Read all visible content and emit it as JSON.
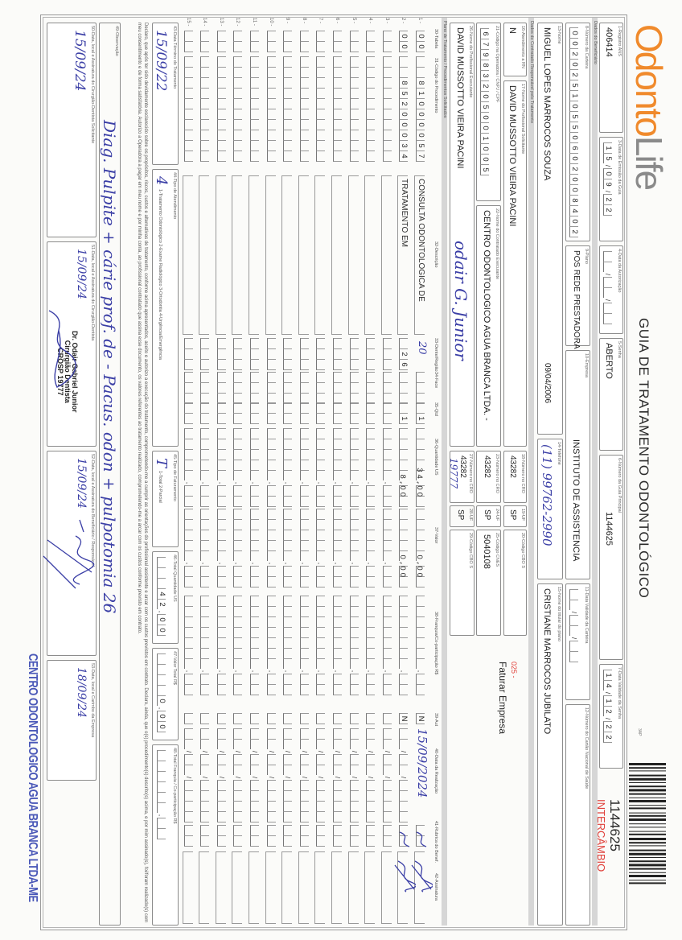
{
  "header": {
    "brand_a": "Odonto",
    "brand_b": "Life",
    "title": "GUIA DE TRATAMENTO ODONTOLÓGICO",
    "form_code": "3AP",
    "barcode_number": "1144625",
    "barcode_tag": "INTERCÂMBIO",
    "colors": {
      "brand": "#f08a2c",
      "tag": "#e0403a",
      "handwriting": "#3b3fa6"
    }
  },
  "guide": {
    "registro_ans": {
      "label": "1-Registro ANS",
      "value": "406414"
    },
    "data_emissao": {
      "label": "3-Data de Emissão da Guia",
      "value": "15/09/22"
    },
    "data_autorizacao": {
      "label": "4-Data da Autorização",
      "value": ""
    },
    "senha": {
      "label": "5-Senha",
      "value": "ABERTO"
    },
    "guia_principal": {
      "label": "6-Número da Guia Principal",
      "value": "1144625"
    },
    "validade_senha": {
      "label": "7-Data Validade da Senha",
      "value": "14/12/22"
    }
  },
  "beneficiario": {
    "section": "Dados do Beneficiário",
    "carteira": {
      "label": "8-Número da Carteira",
      "value": "00202510550602008402"
    },
    "plano": {
      "label": "9-Plano",
      "value": "POS REDE PRESTADORA"
    },
    "empresa": {
      "label": "10-Empresa",
      "value": "INSTITUTO DE ASSISTENCIA"
    },
    "validade_carteira": {
      "label": "11-Data Validade da Carteira",
      "value": ""
    },
    "cns": {
      "label": "12-Número do Cartão Nacional de Saúde",
      "value": ""
    },
    "nome": {
      "label": "13-Nome",
      "value": "MIGUEL LOPES MARROCOS SOUZA"
    },
    "nascimento": "09/04/2006",
    "telefone": {
      "label": "14-Telefone",
      "value": "(11) 99762-2990"
    },
    "titular": {
      "label": "15-Nome do titular do plano",
      "value": "CRISTIANE MARROCOS JUBILATO"
    }
  },
  "contratado": {
    "section": "Dados do Contratado Responsável pelo Tratamento",
    "rn": {
      "label": "16-Atendimento a RN",
      "value": "N"
    },
    "solicitante": {
      "label": "17-Nome do Profissional Solicitante",
      "value": "DAVID MUSSOTTO VIEIRA PACINI"
    },
    "cro_sol": {
      "label": "18-Número no CRO",
      "value": "43282"
    },
    "uf_sol": {
      "label": "19-UF",
      "value": "SP"
    },
    "cbo_sol": {
      "label": "20-Código CBO S",
      "value": ""
    },
    "faturamento_code": "025 -",
    "faturamento_text": "Faturar Empresa",
    "codigo_operadora": {
      "label": "21-Código na Operadora / CNPJ / CPF",
      "value": "67983205001005"
    },
    "executante_contratado": {
      "label": "22-Nome do Contratado Executante",
      "value": "CENTRO ODONTOLOGICO AGUA BRANCA LTDA. -"
    },
    "cro_exec": {
      "label": "23-Número no CRO",
      "value": "43282"
    },
    "uf_exec": {
      "label": "24-UF",
      "value": "SP"
    },
    "cnes": {
      "label": "25-Código CNES",
      "value": "5040108"
    },
    "prof_executante": {
      "label": "26-Nome do Profissional Executante",
      "value": "DAVID MUSSOTTO VIEIRA PACINI"
    },
    "prof_signature": "odair G. Junior",
    "cro_prof": {
      "label": "27-Número no CRO",
      "value": "43282"
    },
    "cro_handwritten": "19777",
    "uf_prof": {
      "label": "28-UF",
      "value": "SP"
    },
    "cbo_prof": {
      "label": "29-Código CBO S",
      "value": ""
    }
  },
  "procedures": {
    "section": "Plano de Tratamento / Procedimentos Solicitados",
    "headers": {
      "tabela": "30-Tabela",
      "codigo": "31-Código do Procedimento",
      "descricao": "32-Descrição",
      "dente": "33-Dente/Região",
      "face": "34-Face",
      "qtd": "35-Qtd",
      "us": "36-Quantidade US",
      "valor": "37-Valor",
      "franquia": "38-Franquia/Co-participação R$",
      "aut": "39-Aut",
      "data": "40-Data da Realização",
      "rubrica": "41-Rubrica do Benef.",
      "assinatura": "42-Assinatura"
    },
    "rows": [
      {
        "n": "1 -",
        "tabela": "00",
        "codigo": "81000057",
        "descricao": "CONSULTA ODONTOLOGICA DE",
        "dente": "20",
        "face": "",
        "qtd": "1",
        "us": "34,00",
        "valor": "0,00",
        "franquia": "",
        "aut": "N",
        "data": "15/09/2024",
        "signed": true
      },
      {
        "n": "2 -",
        "tabela": "00",
        "codigo": "85200034",
        "descricao": "TRATAMENTO EM",
        "dente": "26",
        "face": "",
        "qtd": "1",
        "us": "8,00",
        "valor": "0,00",
        "franquia": "",
        "aut": "N",
        "data": "",
        "signed": true
      },
      {
        "n": "3 -"
      },
      {
        "n": "4 -"
      },
      {
        "n": "5 -"
      },
      {
        "n": "6 -"
      },
      {
        "n": "7 -"
      },
      {
        "n": "8 -"
      },
      {
        "n": "9 -"
      },
      {
        "n": "10 -"
      },
      {
        "n": "11 -"
      },
      {
        "n": "12 -"
      },
      {
        "n": "13 -"
      },
      {
        "n": "14 -"
      },
      {
        "n": "15 -"
      }
    ]
  },
  "totals": {
    "data_termino": {
      "label": "43-Data Término do Tratamento",
      "value": "15/09/22"
    },
    "tipo_atendimento": {
      "label": "44-Tipo de Atendimento",
      "value": "4",
      "options": "1-Tratamento Odontológico  2-Exame Radiológico  3-Ortodontia  4-Urgência/Emergência"
    },
    "tipo_faturamento": {
      "label": "45-Tipo de Faturamento",
      "value": "T",
      "options": "1-Total  2-Parcial"
    },
    "total_us": {
      "label": "46-Total Quantidade US",
      "value": "42,00"
    },
    "valor_total": {
      "label": "47-Valor Total R$",
      "value": "0,00"
    },
    "total_franquia": {
      "label": "48-Total Franquia / Co-participação R$",
      "value": ""
    }
  },
  "declaration": "Declaro, que após ter sido devidamente esclarecido sobre os propósitos, riscos, custos e alternativas de tratamento, conforme acima apresentados, aceito e autorizo a execução do tratamento, comprometendo-me a cumprir as orientações do profissional assistente e arcar com os custos previstos em contrato. Declaro, ainda, que o(s) procedimento(s) descrito(s) acima, e por mim assinado(s), foi/foram realizado(s) com meu consentimento e de forma satisfatória. Autorizo a Operadora a pagar em meu nome e por minha conta, ao profissional contratado que assina esse documento, os valores referentes ao tratamento realizado, comprometendo-me a arcar com os custos conforme previsto em contrato.",
  "observacao": {
    "label": "49-Observação",
    "value": "Diag. Pulpite + cárie prof. de - Pacus. odon + pulpotomia 26"
  },
  "signatures": {
    "s50": {
      "label": "50-Data, local e Assinatura do Cirurgião-Dentista Solicitante",
      "date": "15/09/24"
    },
    "s51": {
      "label": "51-Data, local e Assinatura do Cirurgião-Dentista",
      "date": "15/09/24",
      "stamp": [
        "Dr. Odair Gabriel Junior",
        "Cirurgião Dentista",
        "CROSP 19777"
      ]
    },
    "s52": {
      "label": "52-Data, local e Assinatura do Beneficiário / Responsável",
      "date": "15/09/24"
    },
    "s53": {
      "label": "53-Data, local e Carimbo da Empresa",
      "date": "18/09/24"
    },
    "company_stamp": "CENTRO ODONTOLOGICO AGUA BRANCA LTDA-ME"
  }
}
